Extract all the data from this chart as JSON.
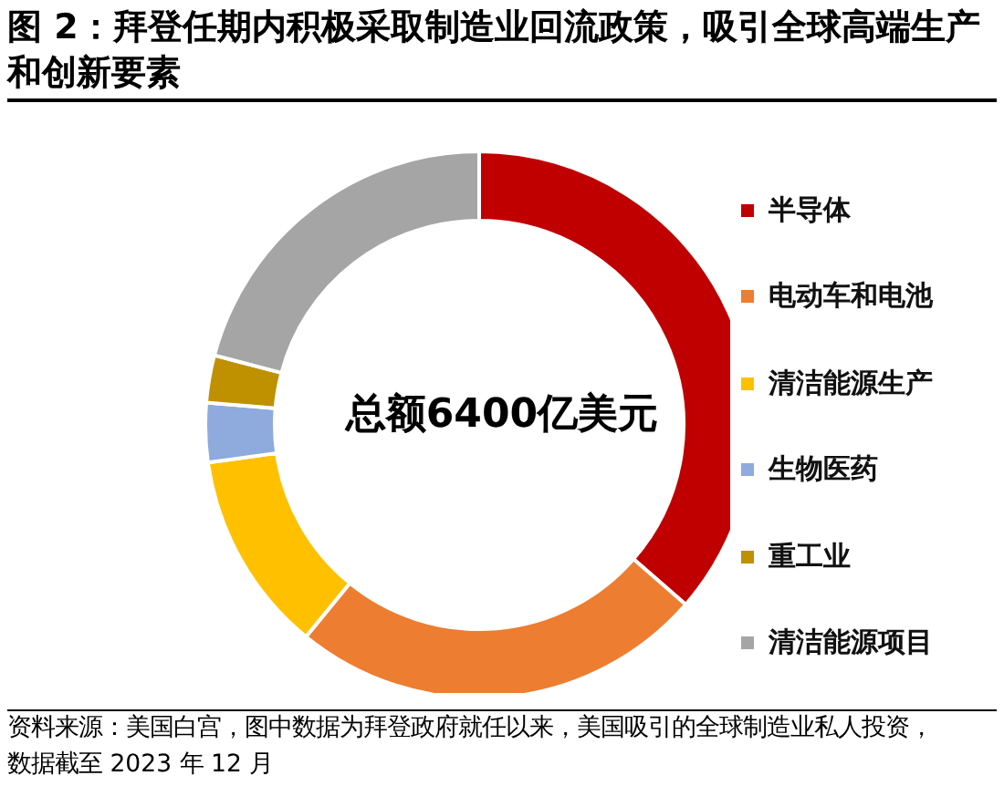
{
  "chart_data": {
    "type": "donut",
    "title": "图 2：拜登任期内积极采取制造业回流政策，吸引全球高端生产和创新要素",
    "categories": [
      "半导体",
      "电动车和电池",
      "清洁能源生产",
      "生物医药",
      "重工业",
      "清洁能源项目"
    ],
    "values": [
      36.4,
      24.5,
      11.9,
      3.5,
      2.8,
      20.9
    ],
    "colors": [
      "#c00000",
      "#ed7d31",
      "#ffc000",
      "#8faadc",
      "#bf9000",
      "#a5a5a5"
    ],
    "legend": "right",
    "annotations": [
      "总额6400亿美元",
      "资料来源：美国白宫，图中数据为拜登政府就任以来，美国吸引的全球制造业私人投资，数据截至 2023 年 12 月"
    ]
  }
}
